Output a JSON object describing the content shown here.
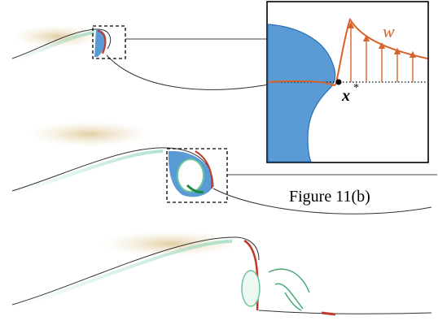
{
  "inset": {
    "velocity_label": "w",
    "point_label": "x",
    "point_superscript": "*"
  },
  "caption_ref": "Figure 11(b)"
}
